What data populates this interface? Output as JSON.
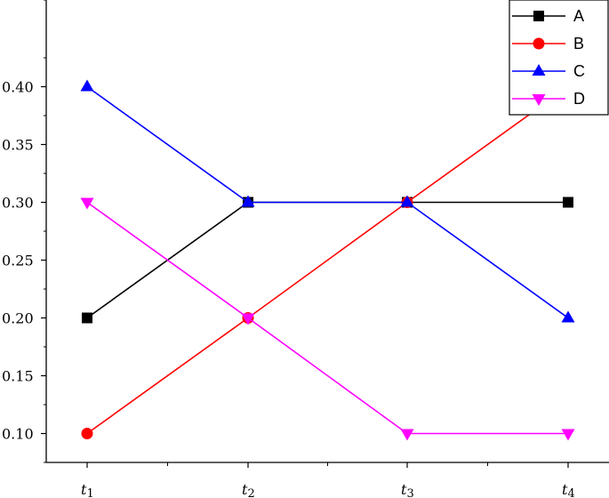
{
  "chart_data": {
    "type": "line",
    "title": "",
    "xlabel": "",
    "ylabel": "",
    "categories": [
      {
        "base": "t",
        "sub": "1"
      },
      {
        "base": "t",
        "sub": "2"
      },
      {
        "base": "t",
        "sub": "3"
      },
      {
        "base": "t",
        "sub": "4"
      }
    ],
    "ylim": [
      0.075,
      0.475
    ],
    "yticks": [
      "0.10",
      "0.15",
      "0.20",
      "0.25",
      "0.30",
      "0.35",
      "0.40"
    ],
    "legend_position": "top-right",
    "grid": false,
    "series": [
      {
        "name": "A",
        "color": "#000000",
        "marker": "square",
        "values": [
          0.2,
          0.3,
          0.3,
          0.3
        ]
      },
      {
        "name": "B",
        "color": "#ff0000",
        "marker": "circle",
        "values": [
          0.1,
          0.2,
          0.3,
          0.4
        ]
      },
      {
        "name": "C",
        "color": "#0000ff",
        "marker": "triangle-up",
        "values": [
          0.4,
          0.3,
          0.3,
          0.2
        ]
      },
      {
        "name": "D",
        "color": "#ff00ff",
        "marker": "triangle-down",
        "values": [
          0.3,
          0.2,
          0.1,
          0.1
        ]
      }
    ]
  }
}
